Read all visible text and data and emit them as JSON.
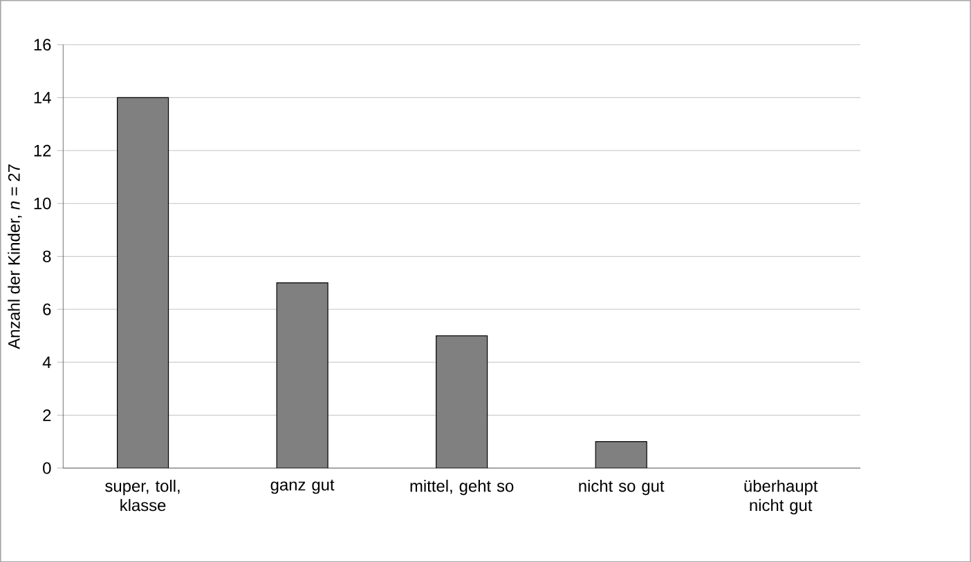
{
  "chart_data": {
    "type": "bar",
    "ylabel": "Anzahl der Kinder, *n* = 27",
    "categories": [
      "super, toll, klasse",
      "ganz gut",
      "mittel, geht so",
      "nicht so gut",
      "überhaupt nicht gut"
    ],
    "values": [
      14,
      7,
      5,
      1,
      0
    ],
    "color": "#808080",
    "ylim": [
      0,
      16
    ],
    "yticks": [
      0,
      2,
      4,
      6,
      8,
      10,
      12,
      14,
      16
    ],
    "grid": "y"
  }
}
